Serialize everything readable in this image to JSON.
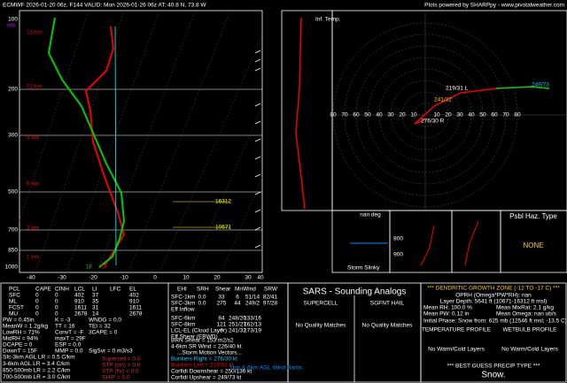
{
  "header": {
    "left": "ECMWF 2026-01-20 06z, F144  VALID: Mon 2026-01-26 06z  AT: 40.8 N, 73.8 W",
    "right": "Plots powered by SHARPpy - www.pivotalweather.com"
  },
  "skewt": {
    "pressure_labels": [
      "100",
      "200",
      "300",
      "500",
      "700",
      "850",
      "1000"
    ],
    "pressure_unit": "mb",
    "height_labels": [
      "15 km",
      "12 km",
      "9 km",
      "6 km",
      "3 km",
      "1 km"
    ],
    "temp_labels": [
      "-40",
      "-30",
      "-20",
      "-10",
      "0",
      "10",
      "20",
      "30",
      "40"
    ],
    "dgz_top": "16312",
    "dgz_bottom": "10671",
    "sfc_temp": "5F",
    "sfc_dew": "1F"
  },
  "inferred_temp": {
    "label": "Inf. Temp."
  },
  "hodograph": {
    "ring_labels": [
      "10",
      "20",
      "30",
      "40",
      "50",
      "60",
      "70",
      "80"
    ],
    "left_mover": "219/31 L",
    "right_mover": "276/30 R",
    "mean": "241/32",
    "upshear": "249/73"
  },
  "panels": {
    "slinky_deg": "nan deg",
    "slinky_title": "Storm Slinky",
    "theta_levels": [
      "800",
      "900"
    ],
    "haz_title": "Psbl Haz. Type",
    "haz_value": "NONE"
  },
  "parcels": {
    "header": [
      "PCL",
      "CAPE",
      "CINH",
      "LCL",
      "LI",
      "LFC",
      "EL"
    ],
    "rows": [
      [
        "SFC",
        "0",
        "0",
        "402",
        "37",
        "402"
      ],
      [
        "ML",
        "0",
        "0",
        "910",
        "35",
        "910"
      ],
      [
        "FCST",
        "0",
        "0",
        "1611",
        "31",
        "1611"
      ],
      [
        "MU",
        "0",
        "0",
        "2678",
        "14",
        "2678"
      ]
    ]
  },
  "indices": [
    [
      "PW = 0.45in",
      "K = -3",
      "WNDG = 0.0"
    ],
    [
      "MeanW = 1.2g/kg",
      "TT = 16",
      "TEI = 32"
    ],
    [
      "LowRH = 71%",
      "ConvT = -F",
      "3CAPE = 0"
    ],
    [
      "MidRH = 94%",
      "maxT = 29F"
    ],
    [
      "DCAPE = 0",
      "ESP = 0.0"
    ],
    [
      "DownT = 15F",
      "MMP = 0.0",
      "SigSvr = 0 m3/s3"
    ]
  ],
  "lapse_rates": [
    "Sfc-3km AGL LR = 0.5 C/km",
    "3-6km AGL LR = 3.4 C/km",
    "850-500mb LR = 2.2 C/km",
    "700-500mb LR = 3.0 C/km"
  ],
  "composite": [
    "Supercell = 0.0",
    "STP (cin) = 0.0",
    "STP (fix) = 0.0",
    "SHIP = 0.0"
  ],
  "kinematics": {
    "header": [
      "EHI",
      "SRH",
      "Shear",
      "MnWind",
      "SRW"
    ],
    "rows": [
      [
        "SFC-1km",
        "0.0",
        "33",
        "6",
        "51/14",
        "82/41"
      ],
      [
        "SFC-3km",
        "0.0",
        "275",
        "44",
        "249/2",
        "97/28"
      ],
      [
        "Eff Inflow"
      ],
      [
        "SFC-6km",
        "",
        "84",
        "248/20",
        "133/16"
      ],
      [
        "SFC-8km",
        "",
        "121",
        "251/27",
        "162/13"
      ],
      [
        "LCL-EL (Cloud Layer)",
        "",
        "0",
        "241/32",
        "173/19"
      ],
      [
        "Eff Shear (EBWD)"
      ]
    ],
    "brn": "BRN Shear = 153 m2/s2",
    "sr_wind": "4-6km SR Wind = 226/40 kt",
    "motion_title": "...Storm Motion Vectors...",
    "bunkers_right": "Bunkers Right = 276/30 kt",
    "bunkers_left": "Bunkers Left = 219/31 kt",
    "corfidi_down": "Corfidi Downshear = 250/136 kt",
    "corfidi_up": "Corfidi Upshear = 249/73 kt",
    "barbs_note": "1km & 6km AGL Wind Barbs"
  },
  "sars": {
    "title": "SARS - Sounding Analogs",
    "supercell": "SUPERCELL",
    "hail": "SGFNT HAIL",
    "supercell_result": "No Quality Matches",
    "hail_result": "No Quality Matches"
  },
  "dgz": {
    "title": "*** DENDRITIC GROWTH ZONE (-12 TO -17 C) ***",
    "oprh": "OPRH (Omega*PW*RH): nan",
    "depth": "Layer Depth: 5641 ft (10671-16312 ft msl)",
    "rh": "Mean RH: 100.0 %",
    "mixr": "Mean MixRat: 2.1 g/kg",
    "pw": "Mean PW: 0.12 in",
    "omega": "Mean Omega: nan ub/s",
    "phase": "Initial Phase: Snow from: 625 mb (12546 ft msl; -13.5 C)",
    "temp_title": "TEMPERATURE PROFILE",
    "temp_result": "No Warm/Cold Layers",
    "wb_title": "WETBULB PROFILE",
    "wb_result": "No Warm/Cold Layers",
    "precip_title": "*** BEST GUESS PRECIP TYPE ***",
    "precip": "Snow."
  }
}
